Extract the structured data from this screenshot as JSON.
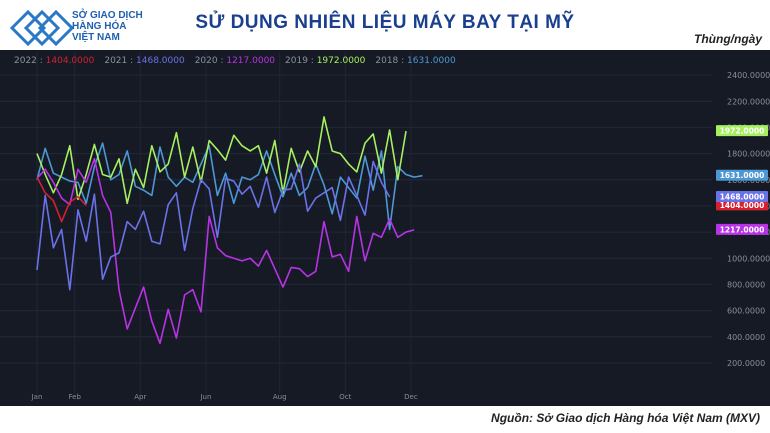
{
  "header": {
    "logo_lines": [
      "SỞ GIAO DỊCH",
      "HÀNG HÓA",
      "VIỆT NAM"
    ],
    "title": "SỬ DỤNG NHIÊN LIỆU MÁY BAY TẠI MỸ",
    "unit": "Thùng/ngày"
  },
  "footer": {
    "source": "Nguồn: Sở Giao dịch Hàng hóa Việt Nam (MXV)"
  },
  "colors": {
    "background": "#161a25",
    "title": "#1b3f8f",
    "logo": "#1f5fb0"
  },
  "legend": [
    {
      "name": "2022",
      "value": "1404.0000",
      "color": "#d6202f"
    },
    {
      "name": "2021",
      "value": "1468.0000",
      "color": "#6a72e8"
    },
    {
      "name": "2020",
      "value": "1217.0000",
      "color": "#b833e6"
    },
    {
      "name": "2019",
      "value": "1972.0000",
      "color": "#a6f060"
    },
    {
      "name": "2018",
      "value": "1631.0000",
      "color": "#4c98d4"
    }
  ],
  "chart_data": {
    "type": "line",
    "x_labels": [
      "Jan",
      "Feb",
      "Apr",
      "Jun",
      "Aug",
      "Oct",
      "Dec"
    ],
    "x_label_weeks": [
      0,
      4.6,
      12.6,
      20.6,
      29.6,
      37.6,
      45.6
    ],
    "ylim": [
      100,
      2500
    ],
    "yticks": [
      200,
      400,
      600,
      800,
      1000,
      1200,
      1400,
      1600,
      1800,
      2000,
      2200,
      2400
    ],
    "ytick_labels": [
      "200.0000",
      "400.0000",
      "600.0000",
      "800.0000",
      "1000.0000",
      "1200.0000",
      "1400.0000",
      "1600.0000",
      "1800.0000",
      "2000.0000",
      "2200.0000",
      "2400.0000"
    ],
    "grid": true,
    "legend_position": "top-left",
    "series": [
      {
        "name": "2018",
        "color": "#4c98d4",
        "last_label": "1631.0000",
        "values": [
          1600,
          1840,
          1650,
          1620,
          1590,
          1580,
          1420,
          1700,
          1880,
          1600,
          1640,
          1820,
          1550,
          1520,
          1480,
          1850,
          1620,
          1550,
          1620,
          1580,
          1720,
          1860,
          1480,
          1650,
          1420,
          1620,
          1600,
          1640,
          1820,
          1640,
          1470,
          1650,
          1480,
          1540,
          1720,
          1560,
          1340,
          1620,
          1540,
          1460,
          1780,
          1520,
          1820,
          1220,
          1700,
          1640,
          1620,
          1631
        ]
      },
      {
        "name": "2019",
        "color": "#a6f060",
        "last_label": "1972.0000",
        "values": [
          1800,
          1640,
          1500,
          1640,
          1860,
          1450,
          1640,
          1870,
          1640,
          1620,
          1760,
          1420,
          1680,
          1540,
          1860,
          1660,
          1720,
          1960,
          1620,
          1850,
          1580,
          1900,
          1830,
          1750,
          1940,
          1860,
          1820,
          1860,
          1650,
          1900,
          1500,
          1840,
          1660,
          1820,
          1700,
          2080,
          1820,
          1800,
          1720,
          1660,
          1880,
          1950,
          1650,
          1980,
          1600,
          1972
        ]
      },
      {
        "name": "2020",
        "color": "#b833e6",
        "values": [
          1610,
          1680,
          1580,
          1460,
          1410,
          1680,
          1580,
          1760,
          1480,
          1350,
          760,
          460,
          620,
          780,
          520,
          350,
          610,
          390,
          720,
          760,
          590,
          1320,
          1080,
          1020,
          1000,
          980,
          1000,
          940,
          1060,
          920,
          780,
          930,
          920,
          860,
          900,
          1280,
          1010,
          1030,
          900,
          1320,
          980,
          1190,
          1160,
          1300,
          1160,
          1200,
          1217
        ]
      },
      {
        "name": "2021",
        "color": "#6a72e8",
        "values": [
          910,
          1480,
          1080,
          1220,
          760,
          1370,
          1130,
          1490,
          840,
          1010,
          1040,
          1280,
          1220,
          1360,
          1130,
          1110,
          1410,
          1500,
          1060,
          1380,
          1600,
          1530,
          1160,
          1610,
          1590,
          1490,
          1550,
          1390,
          1620,
          1350,
          1520,
          1530,
          1720,
          1360,
          1460,
          1500,
          1540,
          1290,
          1620,
          1480,
          1330,
          1740,
          1580,
          1468
        ]
      },
      {
        "name": "2022",
        "color": "#d6202f",
        "values": [
          1620,
          1500,
          1440,
          1280,
          1430,
          1470,
          1404
        ]
      }
    ]
  }
}
